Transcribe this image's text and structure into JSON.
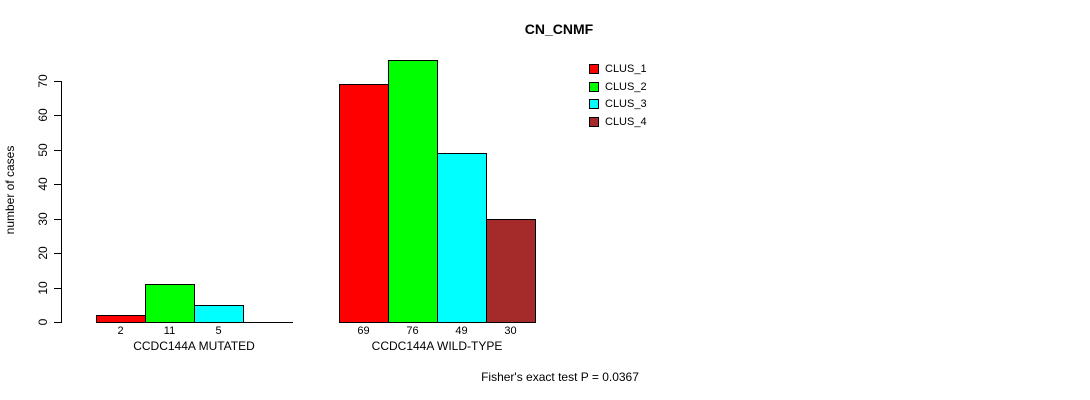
{
  "chart_data": {
    "type": "bar",
    "title": "CN_CNMF",
    "ylabel": "number of cases",
    "xlabel": "",
    "ylim": [
      0,
      70
    ],
    "yticks": [
      0,
      10,
      20,
      30,
      40,
      50,
      60,
      70
    ],
    "grid": false,
    "legend_position": "top-right",
    "categories": [
      "CCDC144A MUTATED",
      "CCDC144A WILD-TYPE"
    ],
    "series": [
      {
        "name": "CLUS_1",
        "color": "#ff0000",
        "values": [
          2,
          69
        ]
      },
      {
        "name": "CLUS_2",
        "color": "#00ff00",
        "values": [
          11,
          76
        ]
      },
      {
        "name": "CLUS_3",
        "color": "#00ffff",
        "values": [
          5,
          49
        ]
      },
      {
        "name": "CLUS_4",
        "color": "#a52a2a",
        "values": [
          0,
          30
        ]
      }
    ],
    "bar_value_labels": {
      "CCDC144A MUTATED": [
        2,
        11,
        5
      ],
      "CCDC144A WILD-TYPE": [
        69,
        76,
        49,
        30
      ]
    },
    "annotation": "Fisher's exact test P = 0.0367"
  }
}
